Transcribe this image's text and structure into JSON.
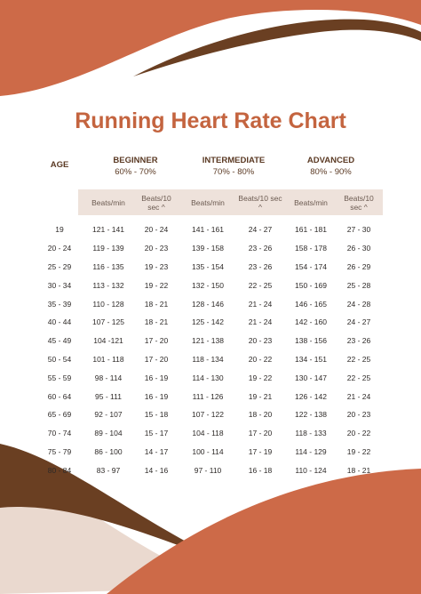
{
  "title": "Running Heart Rate Chart",
  "colors": {
    "title": "#C4643F",
    "wave_orange": "#CD6A48",
    "wave_brown": "#6A3F22",
    "header_band": "#EEE2DB"
  },
  "headers": {
    "age": "AGE",
    "groups": [
      {
        "name": "BEGINNER",
        "range": "60% - 70%"
      },
      {
        "name": "INTERMEDIATE",
        "range": "70% - 80%"
      },
      {
        "name": "ADVANCED",
        "range": "80% - 90%"
      }
    ],
    "sub": [
      "Beats/min",
      "Beats/10 sec ^",
      "Beats/min",
      "Beats/10 sec ^",
      "Beats/min",
      "Beats/10 sec ^"
    ]
  },
  "rows": [
    [
      "19",
      "121 - 141",
      "20 - 24",
      "141 - 161",
      "24 - 27",
      "161 - 181",
      "27 - 30"
    ],
    [
      "20 - 24",
      "119 - 139",
      "20 - 23",
      "139 - 158",
      "23 - 26",
      "158 - 178",
      "26 - 30"
    ],
    [
      "25 - 29",
      "116 - 135",
      "19 - 23",
      "135 - 154",
      "23 - 26",
      "154 - 174",
      "26 - 29"
    ],
    [
      "30 - 34",
      "113 - 132",
      "19 - 22",
      "132 - 150",
      "22 - 25",
      "150 - 169",
      "25 - 28"
    ],
    [
      "35 - 39",
      "110 - 128",
      "18 - 21",
      "128 - 146",
      "21 - 24",
      "146 - 165",
      "24 - 28"
    ],
    [
      "40 - 44",
      "107 - 125",
      "18 - 21",
      "125 - 142",
      "21 - 24",
      "142 - 160",
      "24 - 27"
    ],
    [
      "45 - 49",
      "104 -121",
      "17 - 20",
      "121 - 138",
      "20 - 23",
      "138 - 156",
      "23 - 26"
    ],
    [
      "50 - 54",
      "101 - 118",
      "17 - 20",
      "118 - 134",
      "20 - 22",
      "134 - 151",
      "22 - 25"
    ],
    [
      "55 - 59",
      "98 - 114",
      "16 - 19",
      "114 - 130",
      "19 - 22",
      "130 - 147",
      "22 - 25"
    ],
    [
      "60 - 64",
      "95 - 111",
      "16 - 19",
      "111 - 126",
      "19 - 21",
      "126 - 142",
      "21 - 24"
    ],
    [
      "65 - 69",
      "92 - 107",
      "15 - 18",
      "107 - 122",
      "18 - 20",
      "122 - 138",
      "20 - 23"
    ],
    [
      "70 - 74",
      "89 - 104",
      "15 - 17",
      "104 - 118",
      "17 - 20",
      "118 - 133",
      "20 - 22"
    ],
    [
      "75 - 79",
      "86 - 100",
      "14 - 17",
      "100 - 114",
      "17 - 19",
      "114 - 129",
      "19 - 22"
    ],
    [
      "80 - 84",
      "83 - 97",
      "14 - 16",
      "97 - 110",
      "16 - 18",
      "110 - 124",
      "18 - 21"
    ]
  ]
}
